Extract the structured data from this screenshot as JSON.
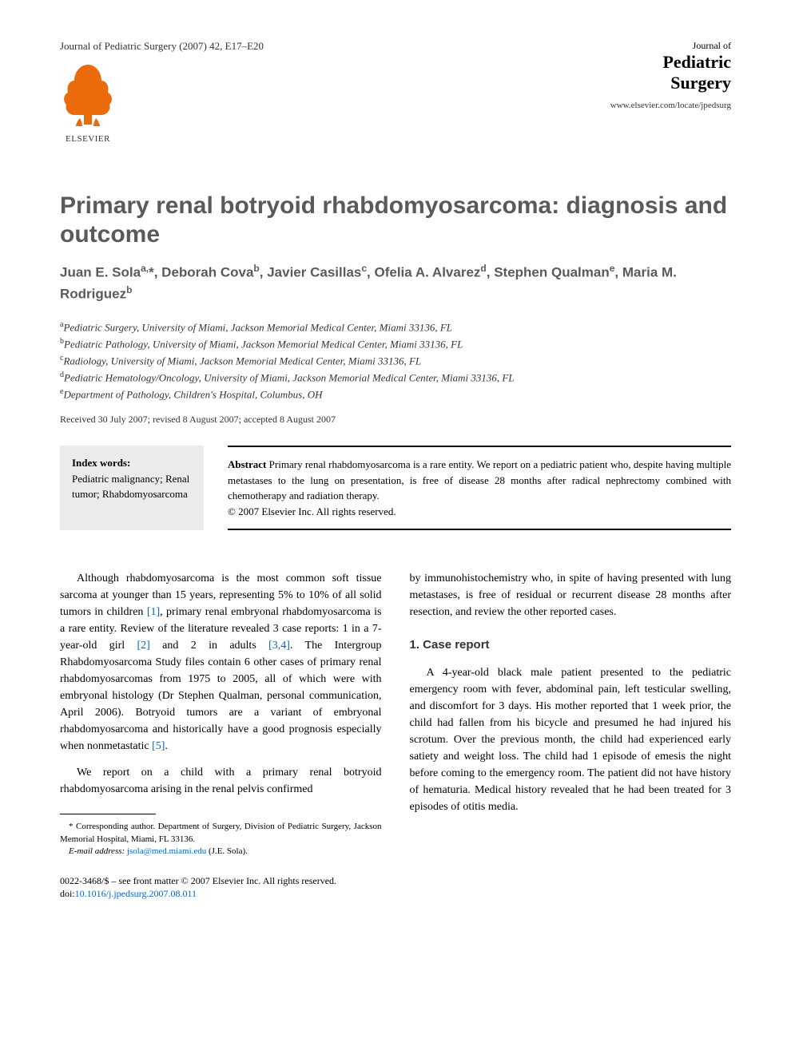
{
  "header": {
    "citation": "Journal of Pediatric Surgery (2007) 42, E17–E20",
    "journal_small": "Journal of",
    "journal_line1": "Pediatric",
    "journal_line2": "Surgery",
    "journal_url": "www.elsevier.com/locate/jpedsurg",
    "publisher": "ELSEVIER"
  },
  "article": {
    "title": "Primary renal botryoid rhabdomyosarcoma: diagnosis and outcome",
    "authors_html": "Juan E. Sola<sup>a,</sup>*, Deborah Cova<sup>b</sup>, Javier Casillas<sup>c</sup>, Ofelia A. Alvarez<sup>d</sup>, Stephen Qualman<sup>e</sup>, Maria M. Rodriguez<sup>b</sup>",
    "affiliations": [
      {
        "sup": "a",
        "text": "Pediatric Surgery, University of Miami, Jackson Memorial Medical Center, Miami 33136, FL"
      },
      {
        "sup": "b",
        "text": "Pediatric Pathology, University of Miami, Jackson Memorial Medical Center, Miami 33136, FL"
      },
      {
        "sup": "c",
        "text": "Radiology, University of Miami, Jackson Memorial Medical Center, Miami 33136, FL"
      },
      {
        "sup": "d",
        "text": "Pediatric Hematology/Oncology, University of Miami, Jackson Memorial Medical Center, Miami 33136, FL"
      },
      {
        "sup": "e",
        "text": "Department of Pathology, Children's Hospital, Columbus, OH"
      }
    ],
    "dates": "Received 30 July 2007; revised 8 August 2007; accepted 8 August 2007"
  },
  "keywords": {
    "heading": "Index words:",
    "items": "Pediatric malignancy; Renal tumor; Rhabdomyosarcoma"
  },
  "abstract": {
    "heading": "Abstract",
    "text": " Primary renal rhabdomyosarcoma is a rare entity. We report on a pediatric patient who, despite having multiple metastases to the lung on presentation, is free of disease 28 months after radical nephrectomy combined with chemotherapy and radiation therapy.",
    "copyright": "© 2007 Elsevier Inc. All rights reserved."
  },
  "body": {
    "col1_p1_pre": "Although rhabdomyosarcoma is the most common soft tissue sarcoma at younger than 15 years, representing 5% to 10% of all solid tumors in children ",
    "ref1": "[1]",
    "col1_p1_mid1": ", primary renal embryonal rhabdomyosarcoma is a rare entity. Review of the literature revealed 3 case reports: 1 in a 7-year-old girl ",
    "ref2": "[2]",
    "col1_p1_mid2": " and 2 in adults ",
    "ref34": "[3,4]",
    "col1_p1_mid3": ". The Intergroup Rhabdomyosarcoma Study files contain 6 other cases of primary renal rhabdomyosarcomas from 1975 to 2005, all of which were with embryonal histology (Dr Stephen Qualman, personal communication, April 2006). Botryoid tumors are a variant of embryonal rhabdomyosarcoma and historically have a good prognosis especially when nonmetastatic ",
    "ref5": "[5]",
    "col1_p1_end": ".",
    "col1_p2": "We report on a child with a primary renal botryoid rhabdomyosarcoma arising in the renal pelvis confirmed",
    "col2_p1": "by immunohistochemistry who, in spite of having presented with lung metastases, is free of residual or recurrent disease 28 months after resection, and review the other reported cases.",
    "section1_heading": "1. Case report",
    "col2_p2": "A 4-year-old black male patient presented to the pediatric emergency room with fever, abdominal pain, left testicular swelling, and discomfort for 3 days. His mother reported that 1 week prior, the child had fallen from his bicycle and presumed he had injured his scrotum. Over the previous month, the child had experienced early satiety and weight loss. The child had 1 episode of emesis the night before coming to the emergency room. The patient did not have history of hematuria. Medical history revealed that he had been treated for 3 episodes of otitis media."
  },
  "footnote": {
    "corresponding": "* Corresponding author. Department of Surgery, Division of Pediatric Surgery, Jackson Memorial Hospital, Miami, FL 33136.",
    "email_label": "E-mail address:",
    "email": "jsola@med.miami.edu",
    "email_suffix": " (J.E. Sola)."
  },
  "footer": {
    "issn_copyright": "0022-3468/$ – see front matter © 2007 Elsevier Inc. All rights reserved.",
    "doi_prefix": "doi:",
    "doi": "10.1016/j.jpedsurg.2007.08.011"
  },
  "colors": {
    "title_gray": "#5a5a5a",
    "link_blue": "#0066cc",
    "keyword_bg": "#ebebeb",
    "elsevier_orange": "#eb6b0b",
    "text": "#000000",
    "background": "#ffffff"
  },
  "typography": {
    "title_fontsize": 30,
    "authors_fontsize": 17,
    "body_fontsize": 14,
    "abstract_fontsize": 13,
    "footnote_fontsize": 11
  }
}
